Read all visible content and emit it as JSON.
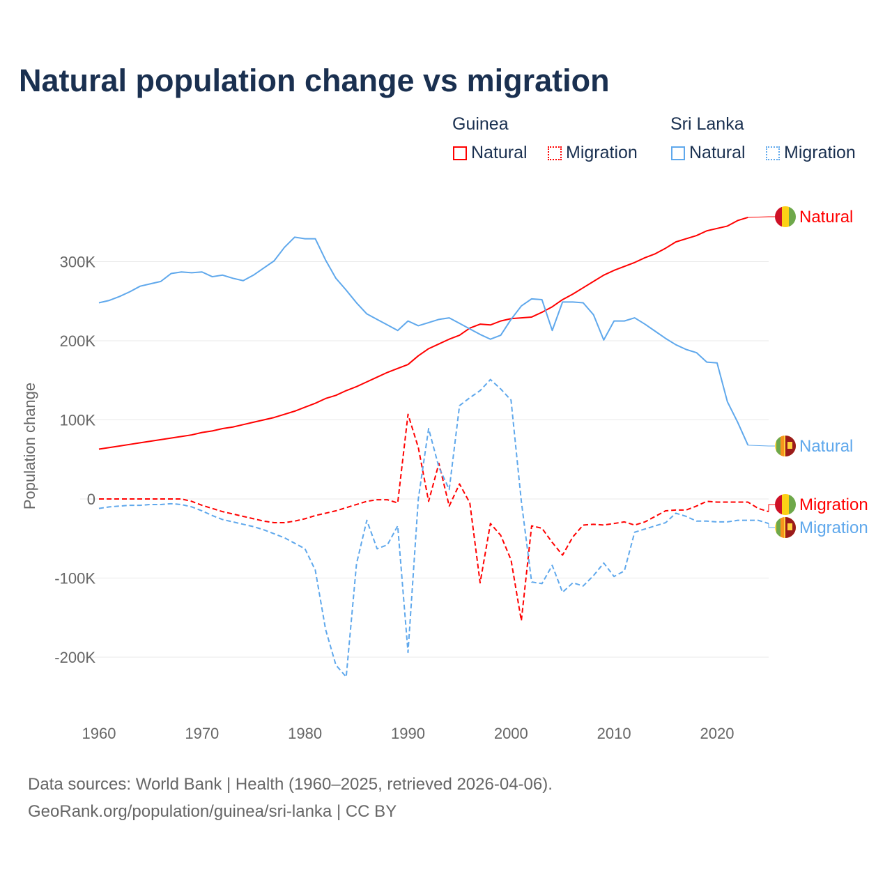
{
  "title": "Natural population change vs migration",
  "legend": {
    "groups": [
      {
        "name": "Guinea",
        "items": [
          "Natural",
          "Migration"
        ],
        "color": "#ff0000"
      },
      {
        "name": "Sri Lanka",
        "items": [
          "Natural",
          "Migration"
        ],
        "color": "#5fa8ec"
      }
    ]
  },
  "footer": {
    "line1": "Data sources: World Bank | Health (1960–2025, retrieved 2026-04-06).",
    "line2": "GeoRank.org/population/guinea/sri-lanka | CC BY"
  },
  "chart_data": {
    "type": "line",
    "title": "Natural population change vs migration",
    "xlabel": "",
    "ylabel": "Population change",
    "xlim": [
      1960,
      2025
    ],
    "ylim": [
      -250000,
      370000
    ],
    "x_ticks": [
      "1960",
      "1970",
      "1980",
      "1990",
      "2000",
      "2010",
      "2020"
    ],
    "y_ticks": [
      {
        "v": 300,
        "label": "300K"
      },
      {
        "v": 200,
        "label": "200K"
      },
      {
        "v": 100,
        "label": "100K"
      },
      {
        "v": 0,
        "label": "0"
      },
      {
        "v": -100,
        "label": "-100K"
      },
      {
        "v": -200,
        "label": "-200K"
      }
    ],
    "units": "thousands",
    "series": [
      {
        "name": "Guinea Natural",
        "label": "Natural",
        "color": "#ff0000",
        "dash": false,
        "start": 1960,
        "values": [
          63,
          65,
          67,
          69,
          71,
          73,
          75,
          77,
          79,
          81,
          84,
          86,
          89,
          91,
          94,
          97,
          100,
          103,
          107,
          111,
          116,
          121,
          127,
          131,
          137,
          142,
          148,
          154,
          160,
          165,
          170,
          181,
          190,
          196,
          202,
          207,
          216,
          221,
          220,
          225,
          228,
          229,
          230,
          236,
          243,
          252,
          259,
          267,
          275,
          283,
          289,
          294,
          299,
          305,
          310,
          317,
          325,
          329,
          333,
          339,
          342,
          345,
          352,
          356
        ]
      },
      {
        "name": "Sri Lanka Natural",
        "label": "Natural",
        "color": "#5fa8ec",
        "dash": false,
        "start": 1960,
        "values": [
          248,
          251,
          256,
          262,
          269,
          272,
          275,
          285,
          287,
          286,
          287,
          281,
          283,
          279,
          276,
          283,
          292,
          301,
          318,
          331,
          329,
          329,
          302,
          279,
          264,
          248,
          234,
          227,
          220,
          213,
          225,
          219,
          223,
          227,
          229,
          222,
          215,
          208,
          202,
          207,
          227,
          244,
          253,
          252,
          213,
          249,
          249,
          248,
          233,
          201,
          225,
          225,
          229,
          221,
          212,
          203,
          195,
          189,
          185,
          173,
          172,
          123,
          97,
          68
        ]
      },
      {
        "name": "Guinea Migration",
        "label": "Migration",
        "color": "#ff0000",
        "dash": true,
        "start": 1960,
        "values": [
          0,
          0,
          0,
          0,
          0,
          0,
          0,
          0,
          0,
          -3,
          -8,
          -12,
          -16,
          -19,
          -22,
          -25,
          -28,
          -30,
          -30,
          -28,
          -25,
          -21,
          -18,
          -15,
          -11,
          -7,
          -3,
          -1,
          -1,
          -5,
          107,
          65,
          -3,
          45,
          -9,
          19,
          -5,
          -106,
          -31,
          -46,
          -77,
          -154,
          -34,
          -37,
          -55,
          -71,
          -48,
          -33,
          -32,
          -33,
          -31,
          -29,
          -33,
          -29,
          -22,
          -15,
          -14,
          -14,
          -9,
          -3,
          -4,
          -4,
          -4,
          -4,
          -12,
          -16
        ]
      },
      {
        "name": "Sri Lanka Migration",
        "label": "Migration",
        "color": "#5fa8ec",
        "dash": true,
        "start": 1960,
        "values": [
          -12,
          -10,
          -9,
          -8,
          -8,
          -7,
          -7,
          -6,
          -7,
          -10,
          -15,
          -21,
          -26,
          -29,
          -32,
          -35,
          -39,
          -44,
          -49,
          -56,
          -63,
          -90,
          -165,
          -210,
          -225,
          -82,
          -27,
          -63,
          -58,
          -34,
          -194,
          0,
          89,
          40,
          12,
          118,
          128,
          137,
          151,
          139,
          125,
          -3,
          -105,
          -107,
          -84,
          -118,
          -106,
          -110,
          -97,
          -81,
          -98,
          -91,
          -42,
          -38,
          -34,
          -30,
          -18,
          -22,
          -28,
          -28,
          -29,
          -29,
          -27,
          -27,
          -27,
          -31
        ]
      }
    ]
  }
}
